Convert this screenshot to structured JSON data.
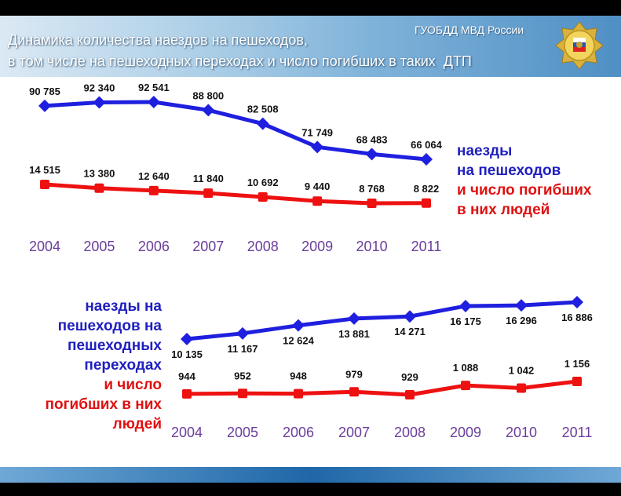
{
  "header": {
    "title_line1": "Динамика количества наездов на пешеходов,",
    "title_line2": "в том числе на пешеходных переходах и число погибших в таких  ДТП",
    "org": "ГУОБДД МВД России"
  },
  "legend_top": {
    "blue_line1": "наезды",
    "blue_line2": "на пешеходов",
    "red_line1": "и число погибших",
    "red_line2": "в них людей"
  },
  "legend_bottom": {
    "blue_line1": "наезды на",
    "blue_line2": "пешеходов на",
    "blue_line3": "пешеходных",
    "blue_line4": "переходах",
    "red_line1": "и число",
    "red_line2": "погибших в них",
    "red_line3": "людей"
  },
  "colors": {
    "blue_series": "#1f1fdf",
    "red_series": "#ee1111",
    "year_labels": "#6a3d9a"
  },
  "chart_data": [
    {
      "type": "line",
      "title": "",
      "categories": [
        "2004",
        "2005",
        "2006",
        "2007",
        "2008",
        "2009",
        "2010",
        "2011"
      ],
      "series": [
        {
          "name": "наезды на пешеходов",
          "values": [
            90785,
            92340,
            92541,
            88800,
            82508,
            71749,
            68483,
            66064
          ],
          "labels": [
            "90 785",
            "92 340",
            "92 541",
            "88 800",
            "82 508",
            "71 749",
            "68 483",
            "66 064"
          ]
        },
        {
          "name": "и число погибших в них людей",
          "values": [
            14515,
            13380,
            12640,
            11840,
            10692,
            9440,
            8768,
            8822
          ],
          "labels": [
            "14 515",
            "13 380",
            "12 640",
            "11 840",
            "10 692",
            "9 440",
            "8 768",
            "8 822"
          ]
        }
      ],
      "grid": false
    },
    {
      "type": "line",
      "title": "",
      "categories": [
        "2004",
        "2005",
        "2006",
        "2007",
        "2008",
        "2009",
        "2010",
        "2011"
      ],
      "series": [
        {
          "name": "наезды на пешеходов на пешеходных переходах",
          "values": [
            10135,
            11167,
            12624,
            13881,
            14271,
            16175,
            16296,
            16886
          ],
          "labels": [
            "10 135",
            "11 167",
            "12 624",
            "13 881",
            "14 271",
            "16 175",
            "16 296",
            "16 886"
          ]
        },
        {
          "name": "и число погибших в них людей",
          "values": [
            944,
            952,
            948,
            979,
            929,
            1088,
            1042,
            1156
          ],
          "labels": [
            "944",
            "952",
            "948",
            "979",
            "929",
            "1 088",
            "1 042",
            "1 156"
          ]
        }
      ],
      "grid": false
    }
  ]
}
